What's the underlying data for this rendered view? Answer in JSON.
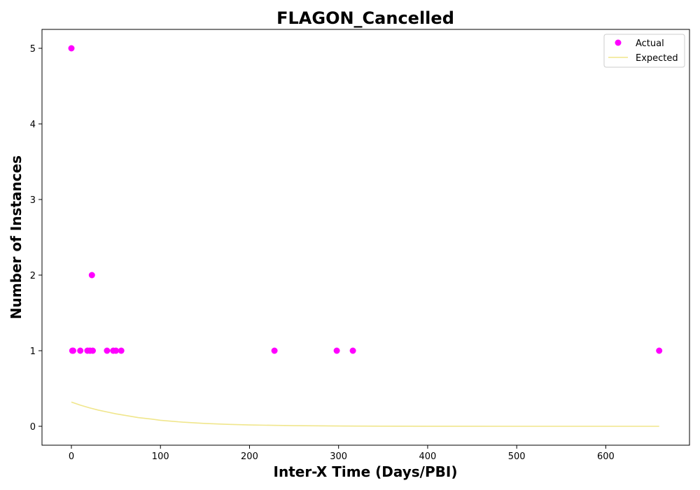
{
  "chart_data": {
    "type": "scatter",
    "title": "FLAGON_Cancelled",
    "xlabel": "Inter-X Time (Days/PBI)",
    "ylabel": "Number of Instances",
    "xlim": [
      -33,
      694
    ],
    "ylim": [
      -0.25,
      5.25
    ],
    "xticks": [
      0,
      100,
      200,
      300,
      400,
      500,
      600
    ],
    "yticks": [
      0,
      1,
      2,
      3,
      4,
      5
    ],
    "grid": false,
    "legend_position": "top-right",
    "series": [
      {
        "name": "Actual",
        "kind": "scatter",
        "color": "#ff00ff",
        "points": [
          [
            0,
            5
          ],
          [
            1,
            1
          ],
          [
            2,
            1
          ],
          [
            10,
            1
          ],
          [
            18,
            1
          ],
          [
            21,
            1
          ],
          [
            23,
            2
          ],
          [
            24,
            1
          ],
          [
            40,
            1
          ],
          [
            47,
            1
          ],
          [
            50,
            1
          ],
          [
            56,
            1
          ],
          [
            228,
            1
          ],
          [
            298,
            1
          ],
          [
            316,
            1
          ],
          [
            660,
            1
          ]
        ]
      },
      {
        "name": "Expected",
        "kind": "line",
        "color": "#f0e68c",
        "points": [
          [
            0,
            0.32
          ],
          [
            10,
            0.28
          ],
          [
            20,
            0.245
          ],
          [
            30,
            0.215
          ],
          [
            40,
            0.19
          ],
          [
            50,
            0.165
          ],
          [
            60,
            0.145
          ],
          [
            75,
            0.115
          ],
          [
            90,
            0.095
          ],
          [
            100,
            0.08
          ],
          [
            125,
            0.055
          ],
          [
            150,
            0.038
          ],
          [
            175,
            0.026
          ],
          [
            200,
            0.018
          ],
          [
            250,
            0.008
          ],
          [
            300,
            0.004
          ],
          [
            350,
            0.002
          ],
          [
            400,
            0.001
          ],
          [
            500,
            0.0
          ],
          [
            600,
            0.0
          ],
          [
            660,
            0.0
          ]
        ]
      }
    ]
  }
}
